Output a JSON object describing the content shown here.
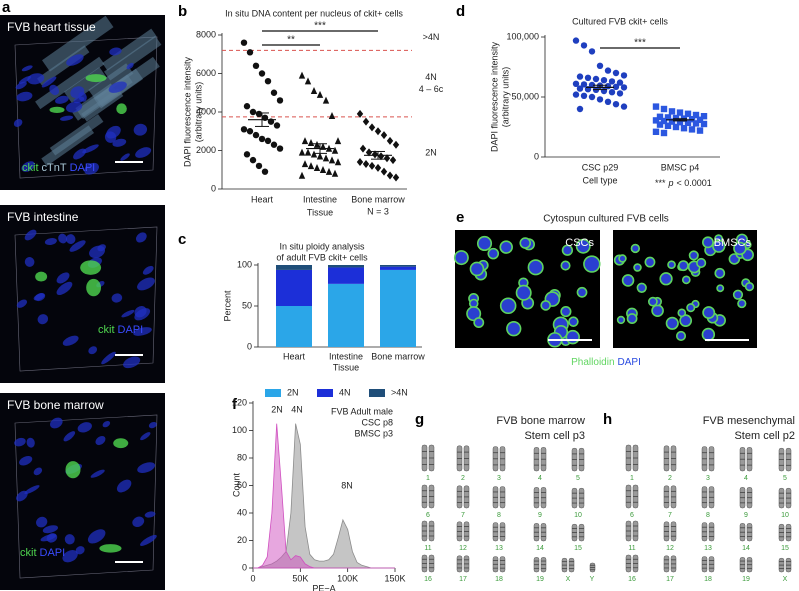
{
  "panel_letters": [
    "a",
    "b",
    "c",
    "d",
    "e",
    "f",
    "g",
    "h"
  ],
  "panel_a": {
    "images": [
      {
        "title": "FVB heart tissue",
        "legend": [
          "ckit",
          "cTnT",
          "DAPI"
        ]
      },
      {
        "title": "FVB intestine",
        "legend": [
          "ckit",
          "DAPI"
        ]
      },
      {
        "title": "FVB bone marrow",
        "legend": [
          "ckit",
          "DAPI"
        ]
      }
    ]
  },
  "chart_data": [
    {
      "type": "strip",
      "title": "In situ DNA content per nucleus of ckit+ cells",
      "ylabel": [
        "DAPI fluorescence intensity",
        "(arbitrary units)"
      ],
      "xlabel": "Tissue",
      "note": "N = 3",
      "categories": [
        "Heart",
        "Intestine",
        "Bone marrow"
      ],
      "values": [
        [
          7600,
          7100,
          6400,
          6000,
          5600,
          5000,
          4600,
          4300,
          4000,
          3900,
          3700,
          3500,
          3300,
          3100,
          3000,
          2800,
          2600,
          2500,
          2300,
          2100,
          1800,
          1500,
          1200,
          900
        ],
        [
          5900,
          5600,
          5100,
          4900,
          4600,
          3800,
          2500,
          2500,
          2400,
          2300,
          2200,
          2100,
          2000,
          1900,
          1900,
          1800,
          1700,
          1600,
          1500,
          1400,
          1300,
          1200,
          1100,
          1000,
          900,
          800,
          700
        ],
        [
          3900,
          3500,
          3200,
          3000,
          2800,
          2500,
          2300,
          2100,
          1900,
          1800,
          1700,
          1600,
          1500,
          1400,
          1300,
          1200,
          1100,
          900,
          700,
          600
        ]
      ],
      "means": [
        3600,
        2100,
        1750
      ],
      "sems": [
        350,
        250,
        200
      ],
      "markers": [
        "circle",
        "triangle",
        "diamond"
      ],
      "color": "#111111",
      "ylim": [
        0,
        8000
      ],
      "yticks": [
        0,
        2000,
        4000,
        6000,
        8000
      ],
      "reference_lines": [
        7200,
        3750
      ],
      "reference_color": "#d9534f",
      "zone_labels": [
        ">4N",
        "4N",
        "4 – 6c",
        "2N"
      ],
      "significance": [
        "**",
        "***"
      ]
    },
    {
      "type": "stacked_bar",
      "title": [
        "In situ ploidy analysis",
        "of adult FVB ckit+ cells"
      ],
      "ylabel": "Percent",
      "xlabel": "Tissue",
      "categories": [
        "Heart",
        "Intestine",
        "Bone marrow"
      ],
      "series": [
        {
          "name": "2N",
          "color": "#2ba6e8",
          "values": [
            50,
            77,
            94
          ]
        },
        {
          "name": "4N",
          "color": "#1c2fd8",
          "values": [
            44,
            20,
            4
          ]
        },
        {
          "name": ">4N",
          "color": "#1f4e79",
          "values": [
            6,
            3,
            2
          ]
        }
      ],
      "ylim": [
        0,
        100
      ],
      "yticks": [
        0,
        50,
        100
      ],
      "legend": "bottom"
    },
    {
      "type": "strip",
      "title": "Cultured FVB ckit+ cells",
      "ylabel": [
        "DAPI fluorescence intensity",
        "(arbitrary units)"
      ],
      "xlabel": "Cell type",
      "categories": [
        "CSC p29",
        "BMSC p4"
      ],
      "values": [
        [
          97000,
          93000,
          88000,
          76000,
          72000,
          70000,
          68000,
          67000,
          66000,
          65000,
          64000,
          63000,
          62000,
          61000,
          60500,
          60000,
          59500,
          59000,
          58500,
          58000,
          57000,
          56500,
          56000,
          55000,
          54000,
          53000,
          52000,
          51000,
          50000,
          48000,
          46000,
          44000,
          42000,
          40000
        ],
        [
          42000,
          40000,
          38000,
          37000,
          36000,
          35000,
          34000,
          33500,
          33000,
          32500,
          32000,
          31500,
          31000,
          30500,
          30000,
          29500,
          29000,
          28500,
          28000,
          27500,
          27000,
          26000,
          25000,
          24000,
          23000,
          22000,
          21000,
          20000
        ]
      ],
      "means": [
        58000,
        31000
      ],
      "sems": [
        1800,
        900
      ],
      "markers": [
        "circle",
        "square"
      ],
      "colors": [
        "#1f3fbf",
        "#2b57e0"
      ],
      "ylim": [
        0,
        100000
      ],
      "yticks": [
        0,
        {
          "value": 50000,
          "label": "50,000"
        },
        {
          "value": 100000,
          "label": "100,000"
        }
      ],
      "significance": [
        "***"
      ],
      "note": [
        "***",
        "p",
        "< 0.0001"
      ]
    },
    {
      "type": "area",
      "ylabel": "Count",
      "xlabel": "PE−A",
      "legend_title": "FVB Adult male",
      "x": [
        0,
        5000,
        10000,
        15000,
        20000,
        25000,
        30000,
        35000,
        40000,
        45000,
        50000,
        55000,
        60000,
        65000,
        70000,
        75000,
        80000,
        85000,
        90000,
        95000,
        100000,
        105000,
        110000,
        115000,
        120000,
        125000,
        130000,
        135000,
        140000,
        145000,
        150000
      ],
      "series": [
        {
          "name": "CSC p8",
          "color": "#8c8c8c",
          "values": [
            0,
            0,
            1,
            2,
            3,
            5,
            8,
            12,
            40,
            105,
            90,
            30,
            10,
            6,
            5,
            5,
            6,
            10,
            22,
            35,
            28,
            12,
            4,
            2,
            1,
            0,
            0,
            0,
            0,
            0,
            0
          ]
        },
        {
          "name": "BMSC p3",
          "color": "#d050c0",
          "values": [
            0,
            0,
            2,
            8,
            40,
            105,
            60,
            12,
            6,
            9,
            8,
            3,
            1,
            0,
            0,
            0,
            0,
            0,
            0,
            0,
            0,
            0,
            0,
            0,
            0,
            0,
            0,
            0,
            0,
            0,
            0
          ]
        }
      ],
      "xlim": [
        0,
        150000
      ],
      "ylim": [
        0,
        120
      ],
      "xticks": [
        0,
        {
          "value": 50000,
          "label": "50K"
        },
        {
          "value": 100000,
          "label": "100K"
        },
        {
          "value": 150000,
          "label": "150K"
        }
      ],
      "yticks": [
        0,
        20,
        40,
        60,
        80,
        100,
        120
      ],
      "annotations": [
        "2N",
        "4N",
        "8N"
      ]
    }
  ],
  "panel_e": {
    "title": "Cytospun cultured FVB cells",
    "images": [
      "CSCs",
      "BMSCs"
    ],
    "legend": [
      "Phalloidin",
      "DAPI"
    ]
  },
  "panel_g": {
    "title": [
      "FVB bone marrow",
      "Stem cell p3"
    ],
    "chromosomes": [
      "1",
      "2",
      "3",
      "4",
      "5",
      "6",
      "7",
      "8",
      "9",
      "10",
      "11",
      "12",
      "13",
      "14",
      "15",
      "16",
      "17",
      "18",
      "19",
      "X",
      "Y"
    ]
  },
  "panel_h": {
    "title": [
      "FVB mesenchymal",
      "Stem cell p2"
    ],
    "chromosomes": [
      "1",
      "2",
      "3",
      "4",
      "5",
      "6",
      "7",
      "8",
      "9",
      "10",
      "11",
      "12",
      "13",
      "14",
      "15",
      "16",
      "17",
      "18",
      "19",
      "X"
    ]
  }
}
